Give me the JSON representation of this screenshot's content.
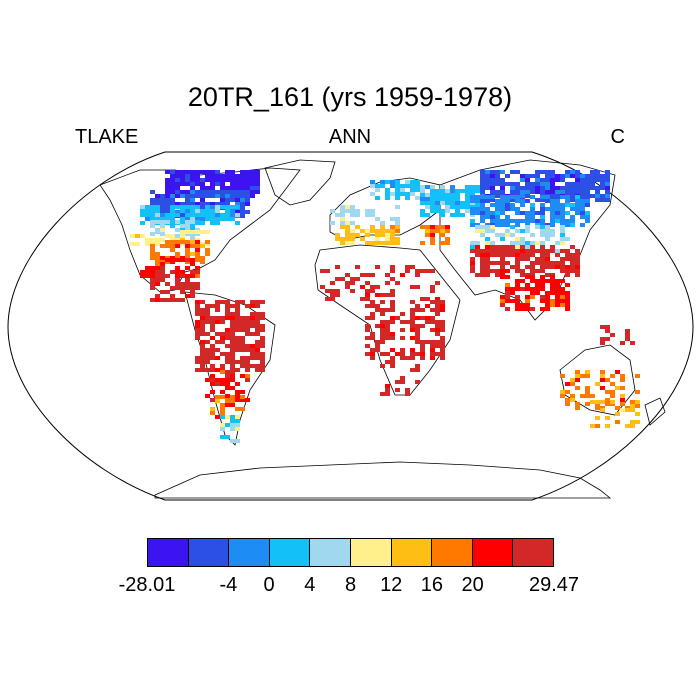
{
  "title": "20TR_161 (yrs 1959-1978)",
  "left_string": "TLAKE",
  "center_string": "ANN",
  "right_string": "C",
  "colorbar": {
    "colors": [
      "#3c14f0",
      "#2c50e6",
      "#1e8cf5",
      "#14c0f8",
      "#a0d8f0",
      "#fff08c",
      "#ffbe14",
      "#ff7800",
      "#ff0000",
      "#d22828"
    ],
    "labels": [
      {
        "text": "-28.01",
        "boundary": 0
      },
      {
        "text": "-4",
        "boundary": 2
      },
      {
        "text": "0",
        "boundary": 3
      },
      {
        "text": "4",
        "boundary": 4
      },
      {
        "text": "8",
        "boundary": 5
      },
      {
        "text": "12",
        "boundary": 6
      },
      {
        "text": "16",
        "boundary": 7
      },
      {
        "text": "20",
        "boundary": 8
      },
      {
        "text": "29.47",
        "boundary": 10
      }
    ]
  }
}
